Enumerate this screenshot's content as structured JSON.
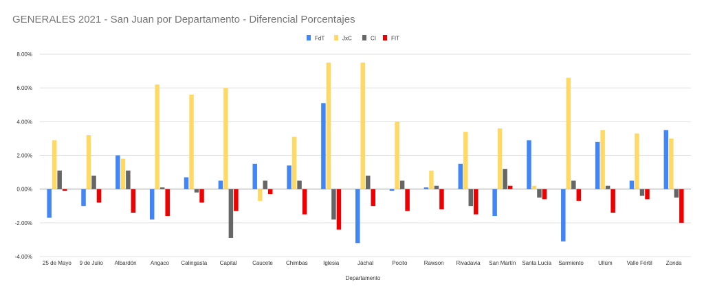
{
  "chart_data": {
    "type": "bar",
    "title": "GENERALES 2021 - San Juan por Departamento - Diferencial Porcentajes",
    "xlabel": "Departamento",
    "ylabel": "",
    "ylim": [
      -4,
      8
    ],
    "y_ticks": [
      -4,
      -2,
      0,
      2,
      4,
      6,
      8
    ],
    "y_tick_labels": [
      "-4.00%",
      "-2.00%",
      "0.00%",
      "2.00%",
      "4.00%",
      "6.00%",
      "8.00%"
    ],
    "grid": true,
    "legend_position": "top-center",
    "categories": [
      "25 de Mayo",
      "9 de Julio",
      "Albardón",
      "Angaco",
      "Calingasta",
      "Capital",
      "Caucete",
      "Chimbas",
      "Iglesia",
      "Jáchal",
      "Pocito",
      "Rawson",
      "Rivadavia",
      "San Martín",
      "Santa Lucía",
      "Sarmiento",
      "Ullúm",
      "Valle Fértil",
      "Zonda"
    ],
    "series": [
      {
        "name": "FdT",
        "color": "#4285F4",
        "values": [
          -1.7,
          -1.0,
          2.0,
          -1.8,
          0.7,
          0.5,
          1.5,
          1.4,
          5.1,
          -3.2,
          -0.1,
          0.1,
          1.5,
          -1.6,
          2.9,
          -3.1,
          2.8,
          0.5,
          3.5
        ]
      },
      {
        "name": "JxC",
        "color": "#FFD966",
        "values": [
          2.9,
          3.2,
          1.8,
          6.2,
          5.6,
          6.0,
          -0.7,
          3.1,
          7.5,
          7.5,
          4.0,
          1.1,
          3.4,
          3.6,
          0.2,
          6.6,
          3.5,
          3.3,
          3.0
        ]
      },
      {
        "name": "CI",
        "color": "#666666",
        "values": [
          1.1,
          0.8,
          1.1,
          0.1,
          -0.2,
          -2.9,
          0.5,
          0.5,
          -1.8,
          0.8,
          0.5,
          0.2,
          -1.0,
          1.2,
          -0.5,
          0.5,
          0.2,
          -0.4,
          -0.5
        ]
      },
      {
        "name": "FIT",
        "color": "#EE0000",
        "values": [
          -0.1,
          -0.8,
          -1.4,
          -1.6,
          -0.8,
          -1.3,
          -0.3,
          -1.5,
          -2.4,
          -1.0,
          -1.3,
          -1.2,
          -1.5,
          0.2,
          -0.6,
          -0.7,
          -1.4,
          -0.6,
          -2.0
        ]
      }
    ]
  }
}
